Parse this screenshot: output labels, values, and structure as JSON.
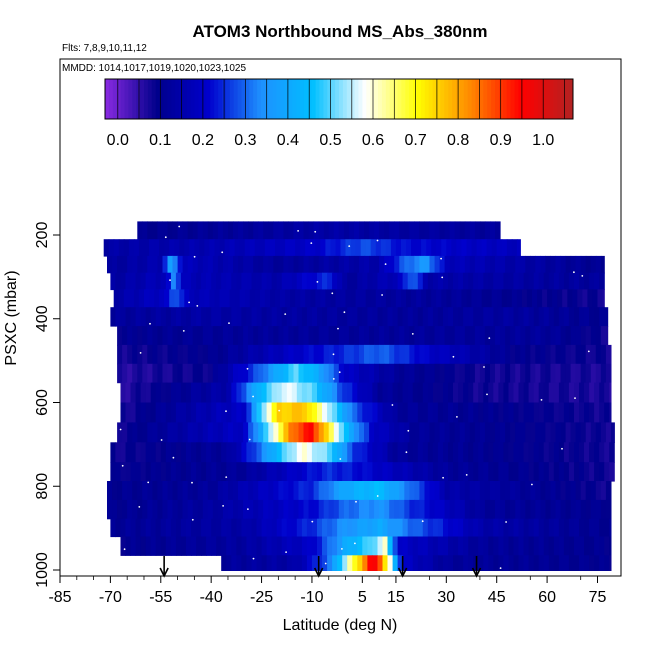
{
  "chart_data": {
    "type": "heatmap",
    "title": "ATOM3 Northbound MS_Abs_380nm",
    "subtitle_flights": "Flts: 7,8,9,10,11,12",
    "subtitle_dates": "MMDD: 1014,1017,1019,1020,1023,1025",
    "xlabel": "Latitude (deg N)",
    "ylabel": "PSXC (mbar)",
    "xlim": [
      -85,
      82
    ],
    "ylim": [
      1010,
      130
    ],
    "x_ticks": [
      -85,
      -70,
      -55,
      -40,
      -25,
      -10,
      5,
      15,
      30,
      45,
      60,
      75
    ],
    "y_ticks": [
      200,
      400,
      600,
      800,
      1000
    ],
    "colorbar_ticks": [
      0.0,
      0.1,
      0.2,
      0.3,
      0.4,
      0.5,
      0.6,
      0.7,
      0.8,
      0.9,
      1.0
    ],
    "colorbar_range": [
      -0.03,
      1.07
    ],
    "colors": [
      "#8a2be2",
      "#00008b",
      "#0000cd",
      "#1e90ff",
      "#00bfff",
      "#ffffff",
      "#ffff00",
      "#ff8c00",
      "#ff0000",
      "#b22222"
    ],
    "rows": [
      {
        "p": 190,
        "lat": [
          -62,
          46
        ],
        "v": [
          [
            -62,
            0.1
          ],
          [
            -30,
            0.12
          ],
          [
            -5,
            0.14
          ],
          [
            20,
            0.13
          ],
          [
            46,
            0.12
          ]
        ]
      },
      {
        "p": 230,
        "lat": [
          -72,
          52
        ],
        "v": [
          [
            -72,
            0.14
          ],
          [
            -40,
            0.16
          ],
          [
            -10,
            0.2
          ],
          [
            0,
            0.25
          ],
          [
            5,
            0.28
          ],
          [
            18,
            0.22
          ],
          [
            52,
            0.18
          ]
        ]
      },
      {
        "p": 270,
        "lat": [
          -71,
          77
        ],
        "v": [
          [
            -71,
            0.12
          ],
          [
            -55,
            0.16
          ],
          [
            -52,
            0.38
          ],
          [
            -48,
            0.18
          ],
          [
            -20,
            0.12
          ],
          [
            10,
            0.15
          ],
          [
            18,
            0.3
          ],
          [
            24,
            0.36
          ],
          [
            30,
            0.18
          ],
          [
            77,
            0.1
          ]
        ]
      },
      {
        "p": 310,
        "lat": [
          -70,
          77
        ],
        "v": [
          [
            -70,
            0.13
          ],
          [
            -53,
            0.18
          ],
          [
            -51,
            0.35
          ],
          [
            -48,
            0.17
          ],
          [
            -20,
            0.15
          ],
          [
            -5,
            0.25
          ],
          [
            0,
            0.12
          ],
          [
            16,
            0.18
          ],
          [
            20,
            0.32
          ],
          [
            24,
            0.15
          ],
          [
            77,
            0.12
          ]
        ]
      },
      {
        "p": 350,
        "lat": [
          -69,
          77
        ],
        "v": [
          [
            -69,
            0.14
          ],
          [
            -53,
            0.2
          ],
          [
            -51,
            0.32
          ],
          [
            -47,
            0.18
          ],
          [
            -20,
            0.14
          ],
          [
            0,
            0.13
          ],
          [
            30,
            0.12
          ],
          [
            77,
            0.08
          ]
        ]
      },
      {
        "p": 395,
        "lat": [
          -70,
          78
        ],
        "v": [
          [
            -70,
            0.12
          ],
          [
            -40,
            0.14
          ],
          [
            -10,
            0.13
          ],
          [
            20,
            0.12
          ],
          [
            50,
            0.13
          ],
          [
            78,
            0.1
          ]
        ]
      },
      {
        "p": 440,
        "lat": [
          -68,
          78
        ],
        "v": [
          [
            -68,
            0.1
          ],
          [
            -30,
            0.12
          ],
          [
            0,
            0.12
          ],
          [
            30,
            0.12
          ],
          [
            60,
            0.12
          ],
          [
            78,
            0.08
          ]
        ]
      },
      {
        "p": 485,
        "lat": [
          -68,
          79
        ],
        "v": [
          [
            -68,
            0.08
          ],
          [
            -40,
            0.1
          ],
          [
            -15,
            0.2
          ],
          [
            0,
            0.25
          ],
          [
            10,
            0.3
          ],
          [
            25,
            0.2
          ],
          [
            50,
            0.1
          ],
          [
            79,
            0.08
          ]
        ]
      },
      {
        "p": 530,
        "lat": [
          -68,
          79
        ],
        "v": [
          [
            -68,
            0.06
          ],
          [
            -40,
            0.09
          ],
          [
            -28,
            0.25
          ],
          [
            -15,
            0.5
          ],
          [
            -8,
            0.4
          ],
          [
            0,
            0.2
          ],
          [
            15,
            0.12
          ],
          [
            40,
            0.08
          ],
          [
            79,
            0.07
          ]
        ]
      },
      {
        "p": 575,
        "lat": [
          -67,
          79
        ],
        "v": [
          [
            -67,
            0.06
          ],
          [
            -35,
            0.15
          ],
          [
            -25,
            0.45
          ],
          [
            -18,
            0.58
          ],
          [
            -10,
            0.5
          ],
          [
            0,
            0.25
          ],
          [
            10,
            0.12
          ],
          [
            40,
            0.08
          ],
          [
            79,
            0.07
          ]
        ]
      },
      {
        "p": 625,
        "lat": [
          -67,
          79
        ],
        "v": [
          [
            -67,
            0.07
          ],
          [
            -30,
            0.2
          ],
          [
            -25,
            0.5
          ],
          [
            -20,
            0.75
          ],
          [
            -12,
            0.77
          ],
          [
            -5,
            0.55
          ],
          [
            3,
            0.28
          ],
          [
            15,
            0.12
          ],
          [
            79,
            0.08
          ]
        ]
      },
      {
        "p": 670,
        "lat": [
          -68,
          80
        ],
        "v": [
          [
            -68,
            0.08
          ],
          [
            -30,
            0.2
          ],
          [
            -22,
            0.55
          ],
          [
            -16,
            0.85
          ],
          [
            -10,
            0.95
          ],
          [
            -5,
            0.7
          ],
          [
            0,
            0.45
          ],
          [
            8,
            0.2
          ],
          [
            20,
            0.12
          ],
          [
            80,
            0.08
          ]
        ]
      },
      {
        "p": 720,
        "lat": [
          -70,
          80
        ],
        "v": [
          [
            -70,
            0.08
          ],
          [
            -35,
            0.12
          ],
          [
            -28,
            0.25
          ],
          [
            -20,
            0.45
          ],
          [
            -13,
            0.6
          ],
          [
            -5,
            0.5
          ],
          [
            3,
            0.25
          ],
          [
            15,
            0.12
          ],
          [
            80,
            0.08
          ]
        ]
      },
      {
        "p": 765,
        "lat": [
          -70,
          80
        ],
        "v": [
          [
            -70,
            0.09
          ],
          [
            -30,
            0.12
          ],
          [
            -15,
            0.2
          ],
          [
            -5,
            0.25
          ],
          [
            5,
            0.22
          ],
          [
            15,
            0.18
          ],
          [
            30,
            0.12
          ],
          [
            80,
            0.08
          ]
        ]
      },
      {
        "p": 810,
        "lat": [
          -71,
          79
        ],
        "v": [
          [
            -71,
            0.1
          ],
          [
            -40,
            0.12
          ],
          [
            -10,
            0.25
          ],
          [
            0,
            0.4
          ],
          [
            10,
            0.45
          ],
          [
            20,
            0.3
          ],
          [
            30,
            0.15
          ],
          [
            79,
            0.08
          ]
        ]
      },
      {
        "p": 855,
        "lat": [
          -71,
          79
        ],
        "v": [
          [
            -71,
            0.1
          ],
          [
            -40,
            0.13
          ],
          [
            -10,
            0.22
          ],
          [
            0,
            0.3
          ],
          [
            10,
            0.35
          ],
          [
            20,
            0.25
          ],
          [
            40,
            0.12
          ],
          [
            79,
            0.1
          ]
        ]
      },
      {
        "p": 900,
        "lat": [
          -70,
          79
        ],
        "v": [
          [
            -70,
            0.11
          ],
          [
            -30,
            0.14
          ],
          [
            -10,
            0.25
          ],
          [
            0,
            0.35
          ],
          [
            10,
            0.4
          ],
          [
            20,
            0.3
          ],
          [
            40,
            0.15
          ],
          [
            79,
            0.1
          ]
        ]
      },
      {
        "p": 940,
        "lat": [
          -67,
          79
        ],
        "v": [
          [
            -67,
            0.1
          ],
          [
            -30,
            0.13
          ],
          [
            -10,
            0.2
          ],
          [
            0,
            0.4
          ],
          [
            8,
            0.5
          ],
          [
            12,
            0.6
          ],
          [
            14,
            0.35
          ],
          [
            16,
            0.2
          ],
          [
            40,
            0.12
          ],
          [
            79,
            0.1
          ]
        ]
      },
      {
        "p": 990,
        "lat": [
          -37,
          79
        ],
        "v": [
          [
            -37,
            0.12
          ],
          [
            -15,
            0.14
          ],
          [
            -5,
            0.3
          ],
          [
            0,
            0.55
          ],
          [
            4,
            0.75
          ],
          [
            6,
            0.85
          ],
          [
            8,
            0.98
          ],
          [
            10,
            0.92
          ],
          [
            12,
            0.7
          ],
          [
            14,
            0.5
          ],
          [
            17,
            0.2
          ],
          [
            30,
            0.12
          ],
          [
            79,
            0.1
          ]
        ]
      }
    ],
    "arrows_lat": [
      -54,
      -8,
      17,
      39
    ]
  }
}
